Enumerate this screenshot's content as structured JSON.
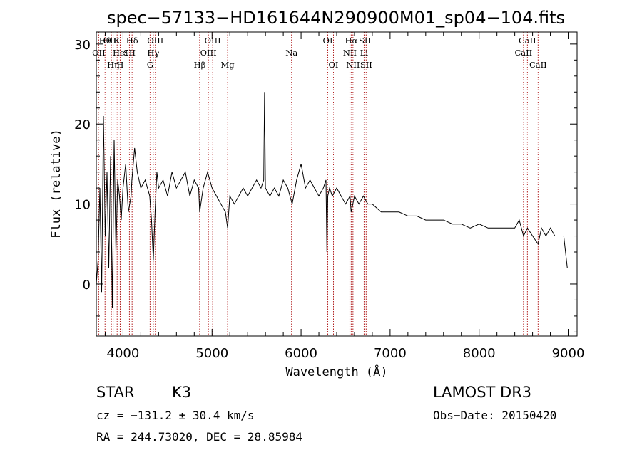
{
  "chart_data": {
    "type": "line",
    "title": "spec−57133−HD161644N290900M01_sp04−104.fits",
    "xlabel": "Wavelength (Å)",
    "ylabel": "Flux (relative)",
    "xlim": [
      3700,
      9100
    ],
    "ylim": [
      -6.5,
      31.5
    ],
    "xticks": [
      4000,
      5000,
      6000,
      7000,
      8000,
      9000
    ],
    "yticks": [
      0,
      10,
      20,
      30
    ],
    "series": [
      {
        "name": "spectrum",
        "color": "#000000",
        "x": [
          3700,
          3720,
          3740,
          3760,
          3780,
          3800,
          3820,
          3840,
          3860,
          3880,
          3900,
          3920,
          3940,
          3960,
          3980,
          4000,
          4030,
          4060,
          4090,
          4100,
          4130,
          4160,
          4200,
          4250,
          4300,
          4320,
          4340,
          4360,
          4380,
          4400,
          4450,
          4500,
          4550,
          4600,
          4650,
          4700,
          4750,
          4800,
          4850,
          4861,
          4900,
          4950,
          5000,
          5050,
          5100,
          5150,
          5175,
          5200,
          5250,
          5300,
          5350,
          5400,
          5450,
          5500,
          5550,
          5580,
          5590,
          5600,
          5650,
          5700,
          5750,
          5800,
          5850,
          5900,
          5950,
          6000,
          6050,
          6100,
          6150,
          6200,
          6250,
          6280,
          6290,
          6300,
          6320,
          6350,
          6400,
          6450,
          6500,
          6550,
          6563,
          6600,
          6650,
          6700,
          6750,
          6800,
          6900,
          7000,
          7100,
          7200,
          7300,
          7400,
          7500,
          7600,
          7700,
          7800,
          7900,
          8000,
          8100,
          8200,
          8300,
          8400,
          8450,
          8498,
          8542,
          8600,
          8662,
          8700,
          8750,
          8800,
          8850,
          8900,
          8950,
          8990
        ],
        "y": [
          0,
          3,
          12,
          -1,
          21,
          6,
          14,
          2,
          16,
          -3,
          18,
          4,
          13,
          11,
          8,
          12,
          15,
          9,
          11,
          13,
          17,
          14,
          12,
          13,
          11,
          8,
          3,
          9,
          14,
          12,
          13,
          11,
          14,
          12,
          13,
          14,
          11,
          13,
          12,
          9,
          12,
          14,
          12,
          11,
          10,
          9,
          7,
          11,
          10,
          11,
          12,
          11,
          12,
          13,
          12,
          13,
          24,
          12,
          11,
          12,
          11,
          13,
          12,
          10,
          13,
          15,
          12,
          13,
          12,
          11,
          12,
          13,
          4,
          11,
          12,
          11,
          12,
          11,
          10,
          11,
          9,
          11,
          10,
          11,
          10,
          10,
          9,
          9,
          9,
          8.5,
          8.5,
          8,
          8,
          8,
          7.5,
          7.5,
          7,
          7.5,
          7,
          7,
          7,
          7,
          8,
          6,
          7,
          6,
          5,
          7,
          6,
          7,
          6,
          6,
          6,
          2
        ]
      }
    ],
    "lines": [
      {
        "name": "OII",
        "wavelength": 3727,
        "row": 2
      },
      {
        "name": "Hθ",
        "wavelength": 3798,
        "row": 1
      },
      {
        "name": "OIII",
        "wavelength": 3869,
        "row": 1
      },
      {
        "name": "Hη",
        "wavelength": 3889,
        "row": 3
      },
      {
        "name": "K",
        "wavelength": 3934,
        "row": 1
      },
      {
        "name": "HeI",
        "wavelength": 3970,
        "row": 2
      },
      {
        "name": "H",
        "wavelength": 3968,
        "row": 3
      },
      {
        "name": "SII",
        "wavelength": 4072,
        "row": 2
      },
      {
        "name": "Hδ",
        "wavelength": 4102,
        "row": 1
      },
      {
        "name": "G",
        "wavelength": 4304,
        "row": 3
      },
      {
        "name": "Hγ",
        "wavelength": 4340,
        "row": 2
      },
      {
        "name": "OIII",
        "wavelength": 4363,
        "row": 1
      },
      {
        "name": "Hβ",
        "wavelength": 4861,
        "row": 3
      },
      {
        "name": "OIII",
        "wavelength": 4959,
        "row": 2
      },
      {
        "name": "OIII",
        "wavelength": 5007,
        "row": 1
      },
      {
        "name": "Mg",
        "wavelength": 5175,
        "row": 3
      },
      {
        "name": "Na",
        "wavelength": 5893,
        "row": 2
      },
      {
        "name": "OI",
        "wavelength": 6300,
        "row": 1
      },
      {
        "name": "OI",
        "wavelength": 6364,
        "row": 3
      },
      {
        "name": "NII",
        "wavelength": 6548,
        "row": 2
      },
      {
        "name": "Hα",
        "wavelength": 6563,
        "row": 1
      },
      {
        "name": "NII",
        "wavelength": 6583,
        "row": 3
      },
      {
        "name": "Li",
        "wavelength": 6708,
        "row": 2
      },
      {
        "name": "SII",
        "wavelength": 6716,
        "row": 1
      },
      {
        "name": "SII",
        "wavelength": 6731,
        "row": 3
      },
      {
        "name": "CaII",
        "wavelength": 8498,
        "row": 2
      },
      {
        "name": "CaII",
        "wavelength": 8542,
        "row": 1
      },
      {
        "name": "CaII",
        "wavelength": 8662,
        "row": 3
      }
    ],
    "line_color": "#b22222",
    "info": {
      "class": "STAR",
      "subclass": "K3",
      "survey": "LAMOST DR3",
      "cz": "cz = −131.2 ± 30.4 km/s",
      "obs_date": "Obs−Date: 20150420",
      "coords": "RA = 244.73020, DEC =  28.85984"
    }
  }
}
